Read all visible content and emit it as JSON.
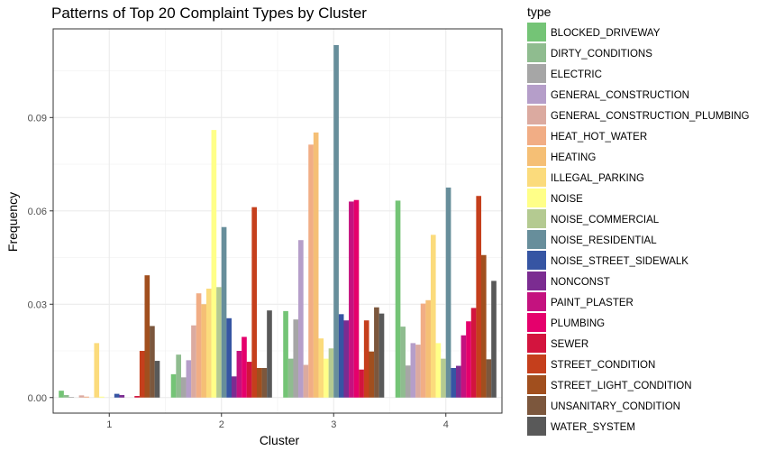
{
  "chart_data": {
    "type": "bar",
    "title": "Patterns of Top 20 Complaint Types by Cluster",
    "xlabel": "Cluster",
    "ylabel": "Frequency",
    "categories": [
      "1",
      "2",
      "3",
      "4"
    ],
    "yticks": [
      0.0,
      0.03,
      0.06,
      0.09
    ],
    "ytick_labels": [
      "0.00",
      "0.03",
      "0.06",
      "0.09"
    ],
    "ylim": [
      -0.005,
      0.1185
    ],
    "grid": true,
    "legend_title": "type",
    "legend_position": "right",
    "series": [
      {
        "name": "BLOCKED_DRIVEWAY",
        "color": "#74c476",
        "values": [
          0.0022,
          0.0075,
          0.0278,
          0.0633
        ]
      },
      {
        "name": "DIRTY_CONDITIONS",
        "color": "#8fbc8f",
        "values": [
          0.0008,
          0.0138,
          0.0125,
          0.0228
        ]
      },
      {
        "name": "ELECTRIC",
        "color": "#a6a6a6",
        "values": [
          0.0002,
          0.0065,
          0.0251,
          0.0103
        ]
      },
      {
        "name": "GENERAL_CONSTRUCTION",
        "color": "#b59ec9",
        "values": [
          0.0,
          0.012,
          0.0506,
          0.0175
        ]
      },
      {
        "name": "GENERAL_CONSTRUCTION_PLUMBING",
        "color": "#dbaaa0",
        "values": [
          0.0007,
          0.0232,
          0.0105,
          0.017
        ]
      },
      {
        "name": "HEAT_HOT_WATER",
        "color": "#f1ad85",
        "values": [
          0.0003,
          0.0335,
          0.0813,
          0.0302
        ]
      },
      {
        "name": "HEATING",
        "color": "#f5bf75",
        "values": [
          0.0,
          0.03,
          0.0852,
          0.0313
        ]
      },
      {
        "name": "ILLEGAL_PARKING",
        "color": "#fbdb7c",
        "values": [
          0.0175,
          0.035,
          0.019,
          0.0523
        ]
      },
      {
        "name": "NOISE",
        "color": "#ffff88",
        "values": [
          0.0003,
          0.086,
          0.0125,
          0.0175
        ]
      },
      {
        "name": "NOISE_COMMERCIAL",
        "color": "#b4ca91",
        "values": [
          0.0,
          0.0355,
          0.0158,
          0.0125
        ]
      },
      {
        "name": "NOISE_RESIDENTIAL",
        "color": "#678e9b",
        "values": [
          0.0,
          0.0548,
          0.1133,
          0.0675
        ]
      },
      {
        "name": "NOISE_STREET_SIDEWALK",
        "color": "#3655a3",
        "values": [
          0.0012,
          0.0255,
          0.0268,
          0.0095
        ]
      },
      {
        "name": "NONCONST",
        "color": "#7b2c91",
        "values": [
          0.0008,
          0.0068,
          0.0248,
          0.0102
        ]
      },
      {
        "name": "PAINT_PLASTER",
        "color": "#c4127f",
        "values": [
          0.0,
          0.015,
          0.063,
          0.02
        ]
      },
      {
        "name": "PLUMBING",
        "color": "#e5006c",
        "values": [
          0.0,
          0.0195,
          0.0635,
          0.0245
        ]
      },
      {
        "name": "SEWER",
        "color": "#d3143e",
        "values": [
          0.0005,
          0.0115,
          0.009,
          0.0288
        ]
      },
      {
        "name": "STREET_CONDITION",
        "color": "#c53f1c",
        "values": [
          0.015,
          0.0612,
          0.0248,
          0.0648
        ]
      },
      {
        "name": "STREET_LIGHT_CONDITION",
        "color": "#a14f1e",
        "values": [
          0.0393,
          0.0095,
          0.0148,
          0.0458
        ]
      },
      {
        "name": "UNSANITARY_CONDITION",
        "color": "#7c573d",
        "values": [
          0.023,
          0.0095,
          0.029,
          0.0123
        ]
      },
      {
        "name": "WATER_SYSTEM",
        "color": "#595959",
        "values": [
          0.0118,
          0.028,
          0.027,
          0.0375
        ]
      }
    ]
  }
}
